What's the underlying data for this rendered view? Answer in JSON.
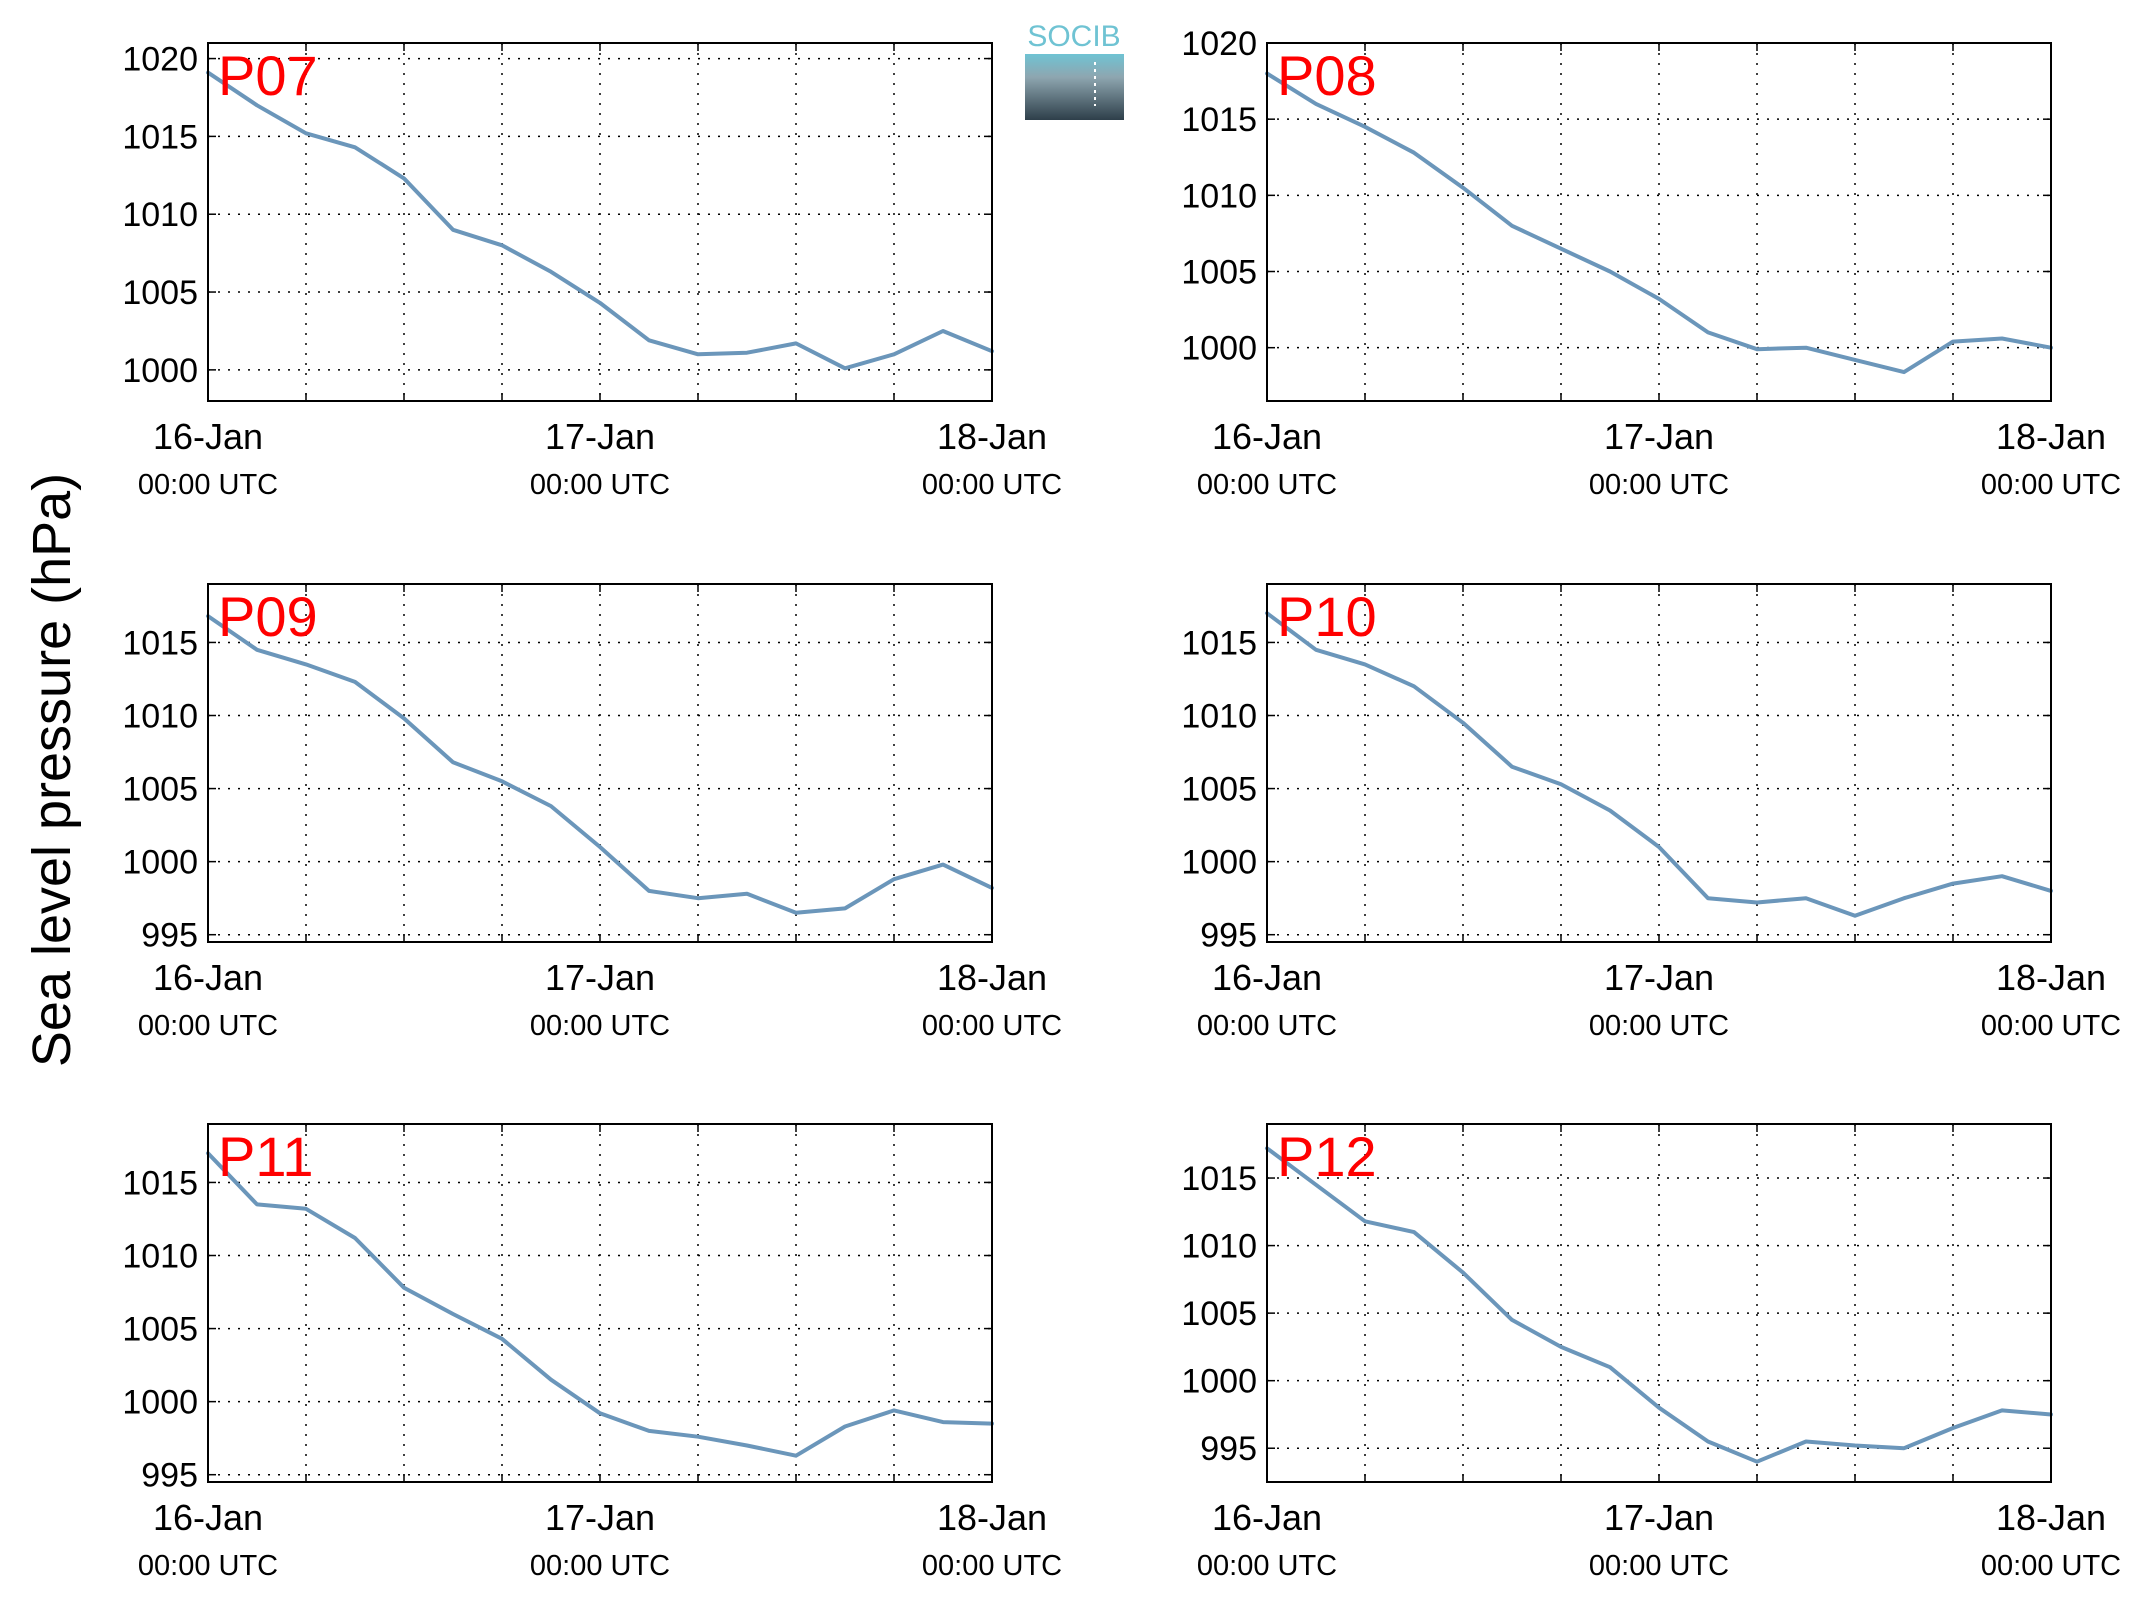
{
  "figure": {
    "ylabel": "Sea level pressure (hPa)",
    "logo_text": "SOCIB"
  },
  "colors": {
    "line": "#6b96ba",
    "panel_label": "#ff0000",
    "axes": "#000000",
    "grid": "#000000",
    "logo_top": "#6fc3d3",
    "logo_bottom": "#2e3f4a"
  },
  "chart_data": [
    {
      "type": "line",
      "title": "P07",
      "xlim": [
        "2016-01-16 00:00",
        "2016-01-18 00:00"
      ],
      "x_tick_labels": [
        [
          "16-Jan",
          "00:00 UTC"
        ],
        [
          "17-Jan",
          "00:00 UTC"
        ],
        [
          "18-Jan",
          "00:00 UTC"
        ]
      ],
      "ylim": [
        998,
        1021
      ],
      "yticks": [
        1000,
        1005,
        1010,
        1015,
        1020
      ],
      "grid": true,
      "series": [
        {
          "x": [
            "2016-01-16 00:00",
            "2016-01-16 03:00",
            "2016-01-16 06:00",
            "2016-01-16 09:00",
            "2016-01-16 12:00",
            "2016-01-16 15:00",
            "2016-01-16 18:00",
            "2016-01-16 21:00",
            "2016-01-17 00:00",
            "2016-01-17 03:00",
            "2016-01-17 06:00",
            "2016-01-17 09:00",
            "2016-01-17 12:00",
            "2016-01-17 15:00",
            "2016-01-17 18:00",
            "2016-01-17 21:00",
            "2016-01-18 00:00"
          ],
          "y": [
            1019.1,
            1017.0,
            1015.2,
            1014.3,
            1012.3,
            1009.0,
            1008.0,
            1006.3,
            1004.3,
            1001.9,
            1001.0,
            1001.1,
            1001.7,
            1000.1,
            1001.0,
            1002.5,
            1001.2
          ]
        }
      ]
    },
    {
      "type": "line",
      "title": "P08",
      "xlim": [
        "2016-01-16 00:00",
        "2016-01-18 00:00"
      ],
      "x_tick_labels": [
        [
          "16-Jan",
          "00:00 UTC"
        ],
        [
          "17-Jan",
          "00:00 UTC"
        ],
        [
          "18-Jan",
          "00:00 UTC"
        ]
      ],
      "ylim": [
        996.5,
        1020
      ],
      "yticks": [
        1000,
        1005,
        1010,
        1015,
        1020
      ],
      "grid": true,
      "series": [
        {
          "x": [
            "2016-01-16 00:00",
            "2016-01-16 03:00",
            "2016-01-16 06:00",
            "2016-01-16 09:00",
            "2016-01-16 12:00",
            "2016-01-16 15:00",
            "2016-01-16 18:00",
            "2016-01-16 21:00",
            "2016-01-17 00:00",
            "2016-01-17 03:00",
            "2016-01-17 06:00",
            "2016-01-17 09:00",
            "2016-01-17 12:00",
            "2016-01-17 15:00",
            "2016-01-17 18:00",
            "2016-01-17 21:00",
            "2016-01-18 00:00"
          ],
          "y": [
            1018.0,
            1016.0,
            1014.5,
            1012.8,
            1010.5,
            1008.0,
            1006.5,
            1005.0,
            1003.2,
            1001.0,
            999.9,
            1000.0,
            999.2,
            998.4,
            1000.4,
            1000.6,
            1000.0
          ]
        }
      ]
    },
    {
      "type": "line",
      "title": "P09",
      "xlim": [
        "2016-01-16 00:00",
        "2016-01-18 00:00"
      ],
      "x_tick_labels": [
        [
          "16-Jan",
          "00:00 UTC"
        ],
        [
          "17-Jan",
          "00:00 UTC"
        ],
        [
          "18-Jan",
          "00:00 UTC"
        ]
      ],
      "ylim": [
        994.5,
        1019
      ],
      "yticks": [
        995,
        1000,
        1005,
        1010,
        1015
      ],
      "grid": true,
      "series": [
        {
          "x": [
            "2016-01-16 00:00",
            "2016-01-16 03:00",
            "2016-01-16 06:00",
            "2016-01-16 09:00",
            "2016-01-16 12:00",
            "2016-01-16 15:00",
            "2016-01-16 18:00",
            "2016-01-16 21:00",
            "2016-01-17 00:00",
            "2016-01-17 03:00",
            "2016-01-17 06:00",
            "2016-01-17 09:00",
            "2016-01-17 12:00",
            "2016-01-17 15:00",
            "2016-01-17 18:00",
            "2016-01-17 21:00",
            "2016-01-18 00:00"
          ],
          "y": [
            1016.8,
            1014.5,
            1013.5,
            1012.3,
            1009.8,
            1006.8,
            1005.5,
            1003.8,
            1001.0,
            998.0,
            997.5,
            997.8,
            996.5,
            996.8,
            998.8,
            999.8,
            998.2
          ]
        }
      ]
    },
    {
      "type": "line",
      "title": "P10",
      "xlim": [
        "2016-01-16 00:00",
        "2016-01-18 00:00"
      ],
      "x_tick_labels": [
        [
          "16-Jan",
          "00:00 UTC"
        ],
        [
          "17-Jan",
          "00:00 UTC"
        ],
        [
          "18-Jan",
          "00:00 UTC"
        ]
      ],
      "ylim": [
        994.5,
        1019
      ],
      "yticks": [
        995,
        1000,
        1005,
        1010,
        1015
      ],
      "grid": true,
      "series": [
        {
          "x": [
            "2016-01-16 00:00",
            "2016-01-16 03:00",
            "2016-01-16 06:00",
            "2016-01-16 09:00",
            "2016-01-16 12:00",
            "2016-01-16 15:00",
            "2016-01-16 18:00",
            "2016-01-16 21:00",
            "2016-01-17 00:00",
            "2016-01-17 03:00",
            "2016-01-17 06:00",
            "2016-01-17 09:00",
            "2016-01-17 12:00",
            "2016-01-17 15:00",
            "2016-01-17 18:00",
            "2016-01-17 21:00",
            "2016-01-18 00:00"
          ],
          "y": [
            1017.0,
            1014.5,
            1013.5,
            1012.0,
            1009.5,
            1006.5,
            1005.3,
            1003.5,
            1001.0,
            997.5,
            997.2,
            997.5,
            996.3,
            997.5,
            998.5,
            999.0,
            998.0
          ]
        }
      ]
    },
    {
      "type": "line",
      "title": "P11",
      "xlim": [
        "2016-01-16 00:00",
        "2016-01-18 00:00"
      ],
      "x_tick_labels": [
        [
          "16-Jan",
          "00:00 UTC"
        ],
        [
          "17-Jan",
          "00:00 UTC"
        ],
        [
          "18-Jan",
          "00:00 UTC"
        ]
      ],
      "ylim": [
        994.5,
        1019
      ],
      "yticks": [
        995,
        1000,
        1005,
        1010,
        1015
      ],
      "grid": true,
      "series": [
        {
          "x": [
            "2016-01-16 00:00",
            "2016-01-16 03:00",
            "2016-01-16 06:00",
            "2016-01-16 09:00",
            "2016-01-16 12:00",
            "2016-01-16 15:00",
            "2016-01-16 18:00",
            "2016-01-16 21:00",
            "2016-01-17 00:00",
            "2016-01-17 03:00",
            "2016-01-17 06:00",
            "2016-01-17 09:00",
            "2016-01-17 12:00",
            "2016-01-17 15:00",
            "2016-01-17 18:00",
            "2016-01-17 21:00",
            "2016-01-18 00:00"
          ],
          "y": [
            1017.0,
            1013.5,
            1013.2,
            1011.2,
            1007.8,
            1006.0,
            1004.3,
            1001.5,
            999.2,
            998.0,
            997.6,
            997.0,
            996.3,
            998.3,
            999.4,
            998.6,
            998.5
          ]
        }
      ]
    },
    {
      "type": "line",
      "title": "P12",
      "xlim": [
        "2016-01-16 00:00",
        "2016-01-18 00:00"
      ],
      "x_tick_labels": [
        [
          "16-Jan",
          "00:00 UTC"
        ],
        [
          "17-Jan",
          "00:00 UTC"
        ],
        [
          "18-Jan",
          "00:00 UTC"
        ]
      ],
      "ylim": [
        992.5,
        1019
      ],
      "yticks": [
        995,
        1000,
        1005,
        1010,
        1015
      ],
      "grid": true,
      "series": [
        {
          "x": [
            "2016-01-16 00:00",
            "2016-01-16 03:00",
            "2016-01-16 06:00",
            "2016-01-16 09:00",
            "2016-01-16 12:00",
            "2016-01-16 15:00",
            "2016-01-16 18:00",
            "2016-01-16 21:00",
            "2016-01-17 00:00",
            "2016-01-17 03:00",
            "2016-01-17 06:00",
            "2016-01-17 09:00",
            "2016-01-17 12:00",
            "2016-01-17 15:00",
            "2016-01-17 18:00",
            "2016-01-17 21:00",
            "2016-01-18 00:00"
          ],
          "y": [
            1017.2,
            1014.5,
            1011.8,
            1011.0,
            1008.0,
            1004.5,
            1002.5,
            1001.0,
            998.0,
            995.5,
            994.0,
            995.5,
            995.2,
            995.0,
            996.5,
            997.8,
            997.5
          ]
        }
      ]
    }
  ]
}
